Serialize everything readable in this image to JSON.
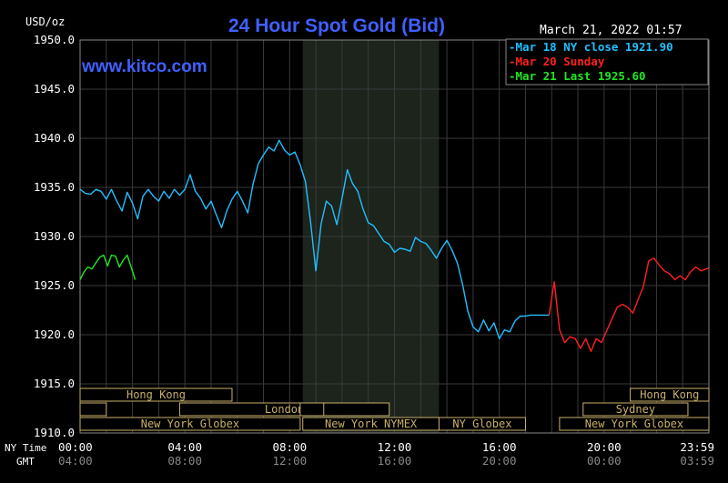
{
  "chart_data": {
    "type": "line",
    "title": "24 Hour Spot Gold (Bid)",
    "watermark": "www.kitco.com",
    "timestamp": "March 21, 2022 01:57",
    "ylabel": "USD/oz",
    "ylim": [
      1910,
      1950
    ],
    "yticks": [
      "1950.0",
      "1945.0",
      "1940.0",
      "1935.0",
      "1930.0",
      "1925.0",
      "1920.0",
      "1915.0",
      "1910.0"
    ],
    "ytick_values": [
      1950,
      1945,
      1940,
      1935,
      1930,
      1925,
      1920,
      1915,
      1910
    ],
    "xlim": [
      0,
      24
    ],
    "x_row_label_ny": "NY Time",
    "x_row_label_gmt": "GMT",
    "xticks_ny": [
      "00:00",
      "04:00",
      "08:00",
      "12:00",
      "16:00",
      "20:00",
      "23:59"
    ],
    "xticks_gmt": [
      "04:00",
      "08:00",
      "12:00",
      "16:00",
      "20:00",
      "00:00",
      "03:59"
    ],
    "xtick_hours": [
      0,
      4,
      8,
      12,
      16,
      20,
      24
    ],
    "grid": true,
    "legend_position": "top-right",
    "shaded_hours": [
      8.5,
      13.7
    ],
    "legend": [
      {
        "text": "Mar 18 NY close 1921.90",
        "color": "#22bfff"
      },
      {
        "text": "Mar 20 Sunday",
        "color": "#ff2020"
      },
      {
        "text": "Mar 21 Last 1925.60",
        "color": "#22e622"
      }
    ],
    "series": [
      {
        "name": "Mar 18",
        "color": "#22bfff",
        "x": [
          0,
          0.2,
          0.4,
          0.6,
          0.8,
          1.0,
          1.2,
          1.4,
          1.6,
          1.8,
          2.0,
          2.2,
          2.4,
          2.6,
          2.8,
          3.0,
          3.2,
          3.4,
          3.6,
          3.8,
          4.0,
          4.2,
          4.4,
          4.6,
          4.8,
          5.0,
          5.2,
          5.4,
          5.6,
          5.8,
          6.0,
          6.2,
          6.4,
          6.6,
          6.8,
          7.0,
          7.2,
          7.4,
          7.6,
          7.8,
          8.0,
          8.2,
          8.4,
          8.6,
          8.8,
          9.0,
          9.2,
          9.4,
          9.6,
          9.8,
          10.0,
          10.2,
          10.4,
          10.6,
          10.8,
          11.0,
          11.2,
          11.4,
          11.6,
          11.8,
          12.0,
          12.2,
          12.4,
          12.6,
          12.8,
          13.0,
          13.2,
          13.4,
          13.6,
          13.8,
          14.0,
          14.2,
          14.4,
          14.6,
          14.8,
          15.0,
          15.2,
          15.4,
          15.6,
          15.8,
          16.0,
          16.2,
          16.4,
          16.6,
          16.8,
          17.0,
          17.2,
          17.6,
          17.9
        ],
        "values": [
          1934.8,
          1934.4,
          1934.3,
          1934.8,
          1934.6,
          1933.8,
          1934.8,
          1933.6,
          1932.6,
          1934.5,
          1933.4,
          1931.8,
          1934.1,
          1934.8,
          1934.1,
          1933.6,
          1934.6,
          1933.9,
          1934.8,
          1934.2,
          1934.8,
          1936.3,
          1934.6,
          1933.9,
          1932.8,
          1933.6,
          1932.2,
          1930.9,
          1932.6,
          1933.8,
          1934.6,
          1933.6,
          1932.4,
          1935.3,
          1937.4,
          1938.3,
          1939.1,
          1938.7,
          1939.8,
          1938.8,
          1938.3,
          1938.6,
          1937.3,
          1935.6,
          1931.4,
          1926.5,
          1931.3,
          1933.6,
          1933.1,
          1931.2,
          1933.9,
          1936.8,
          1935.4,
          1934.6,
          1932.8,
          1931.4,
          1931.1,
          1930.3,
          1929.5,
          1929.2,
          1928.4,
          1928.8,
          1928.7,
          1928.5,
          1929.9,
          1929.5,
          1929.3,
          1928.6,
          1927.8,
          1928.8,
          1929.6,
          1928.6,
          1927.3,
          1925.1,
          1922.4,
          1920.8,
          1920.3,
          1921.5,
          1920.4,
          1921.2,
          1919.6,
          1920.5,
          1920.3,
          1921.4,
          1921.9,
          1921.9,
          1922.0,
          1922.0,
          1922.0
        ]
      },
      {
        "name": "Mar 20",
        "color": "#ff2020",
        "x": [
          17.9,
          18.1,
          18.3,
          18.5,
          18.7,
          18.9,
          19.1,
          19.3,
          19.5,
          19.7,
          19.9,
          20.1,
          20.3,
          20.5,
          20.7,
          20.9,
          21.1,
          21.3,
          21.5,
          21.7,
          21.9,
          22.1,
          22.3,
          22.5,
          22.7,
          22.9,
          23.1,
          23.3,
          23.5,
          23.7,
          23.99
        ],
        "values": [
          1922.0,
          1925.4,
          1920.5,
          1919.2,
          1919.8,
          1919.6,
          1918.6,
          1919.6,
          1918.3,
          1919.6,
          1919.2,
          1920.4,
          1921.6,
          1922.8,
          1923.1,
          1922.8,
          1922.2,
          1923.6,
          1924.9,
          1927.5,
          1927.8,
          1927.1,
          1926.5,
          1926.2,
          1925.6,
          1926.0,
          1925.6,
          1926.4,
          1926.9,
          1926.5,
          1926.8
        ]
      },
      {
        "name": "Mar 21",
        "color": "#22e622",
        "x": [
          0.0,
          0.15,
          0.3,
          0.45,
          0.6,
          0.75,
          0.9,
          1.05,
          1.2,
          1.35,
          1.5,
          1.65,
          1.8,
          1.95,
          2.1
        ],
        "values": [
          1925.6,
          1926.4,
          1926.9,
          1926.7,
          1927.3,
          1927.9,
          1928.1,
          1927.0,
          1928.1,
          1928.0,
          1926.9,
          1927.6,
          1928.1,
          1926.9,
          1925.6
        ]
      }
    ],
    "sessions": [
      {
        "label": "Hong Kong",
        "start": 0,
        "end": 5.8,
        "row": 0
      },
      {
        "label": "",
        "start": 0,
        "end": 1.0,
        "row": 1
      },
      {
        "label": "London",
        "start": 3.8,
        "end": 11.8,
        "row": 1
      },
      {
        "label": "",
        "start": 8.4,
        "end": 9.3,
        "row": 1
      },
      {
        "label": "New York Globex",
        "start": 0,
        "end": 8.4,
        "row": 2
      },
      {
        "label": "New York NYMEX",
        "start": 8.5,
        "end": 13.7,
        "row": 2
      },
      {
        "label": "NY Globex",
        "start": 13.7,
        "end": 17.0,
        "row": 2
      },
      {
        "label": "Hong Kong",
        "start": 21.0,
        "end": 24.0,
        "row": 0
      },
      {
        "label": "Sydney",
        "start": 19.2,
        "end": 23.2,
        "row": 1
      },
      {
        "label": "New York Globex",
        "start": 18.3,
        "end": 24.0,
        "row": 2
      }
    ]
  }
}
